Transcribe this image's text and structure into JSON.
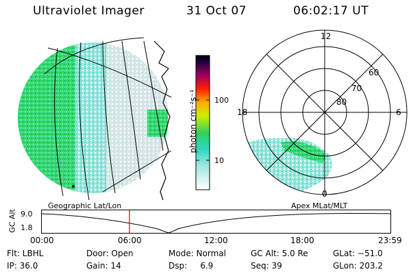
{
  "header": {
    "instrument": "Ultraviolet Imager",
    "date": "31 Oct 07",
    "time": "06:02:17 UT"
  },
  "colorbar": {
    "unit_label": "photon cm⁻²s⁻¹",
    "ticks": [
      "100",
      "10"
    ]
  },
  "polar_plot": {
    "mlt_labels": {
      "top": "12",
      "left": "18",
      "right": "6",
      "bottom": "0"
    },
    "lat_labels": [
      "60",
      "70",
      "80"
    ]
  },
  "panel_labels": {
    "left": "Geographic Lat/Lon",
    "right": "Apex MLat/MLT"
  },
  "altitude_strip": {
    "ylabel": "GC Alt",
    "y_ticks": [
      "9.0",
      "1.8"
    ],
    "x_ticks": [
      "00:00",
      "06:00",
      "12:00",
      "18:00",
      "23:59"
    ],
    "current_time_fraction": 0.251
  },
  "status": {
    "filter": "Flt: LBHL",
    "ip": "IP: 36.0",
    "door": "Door: Open",
    "gain": "Gain: 14",
    "mode": "Mode: Normal",
    "dsp": "Dsp:     6.9",
    "gc_alt": "GC Alt: 5.0 Re",
    "seq": "Seq: 39",
    "glat": "GLat: −51.0",
    "glon": "GLon: 203.2"
  },
  "colors": {
    "auroral_green": "#2fd86a",
    "auroral_cyan": "#40e0d0",
    "auroral_pale": "#d8e6e6",
    "time_marker": "#ff0000"
  }
}
